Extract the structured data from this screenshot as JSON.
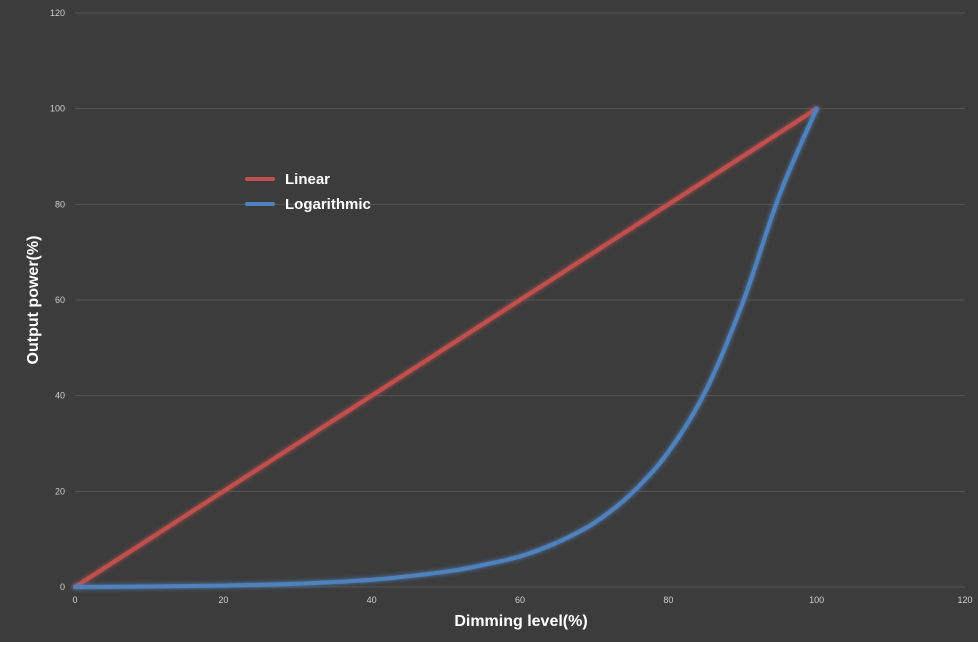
{
  "chart_data": {
    "type": "line",
    "xlabel": "Dimming level(%)",
    "ylabel": "Output  power(%)",
    "xlim": [
      0,
      120
    ],
    "ylim": [
      0,
      120
    ],
    "xticks": [
      0,
      20,
      40,
      60,
      80,
      100,
      120
    ],
    "yticks": [
      0,
      20,
      40,
      60,
      80,
      100,
      120
    ],
    "grid": true,
    "legend_position": "upper-left",
    "series": [
      {
        "name": "Linear",
        "color": "#c0504d",
        "x": [
          0,
          100
        ],
        "y": [
          0,
          100
        ]
      },
      {
        "name": "Logarithmic",
        "color": "#4f81bd",
        "x": [
          0,
          10,
          20,
          30,
          40,
          50,
          55,
          60,
          65,
          70,
          75,
          80,
          85,
          90,
          95,
          100
        ],
        "y": [
          0,
          0.1,
          0.3,
          0.7,
          1.5,
          3.2,
          4.6,
          6.4,
          9.3,
          13.4,
          19.5,
          28.2,
          40.9,
          59.3,
          82.0,
          100
        ]
      }
    ]
  }
}
